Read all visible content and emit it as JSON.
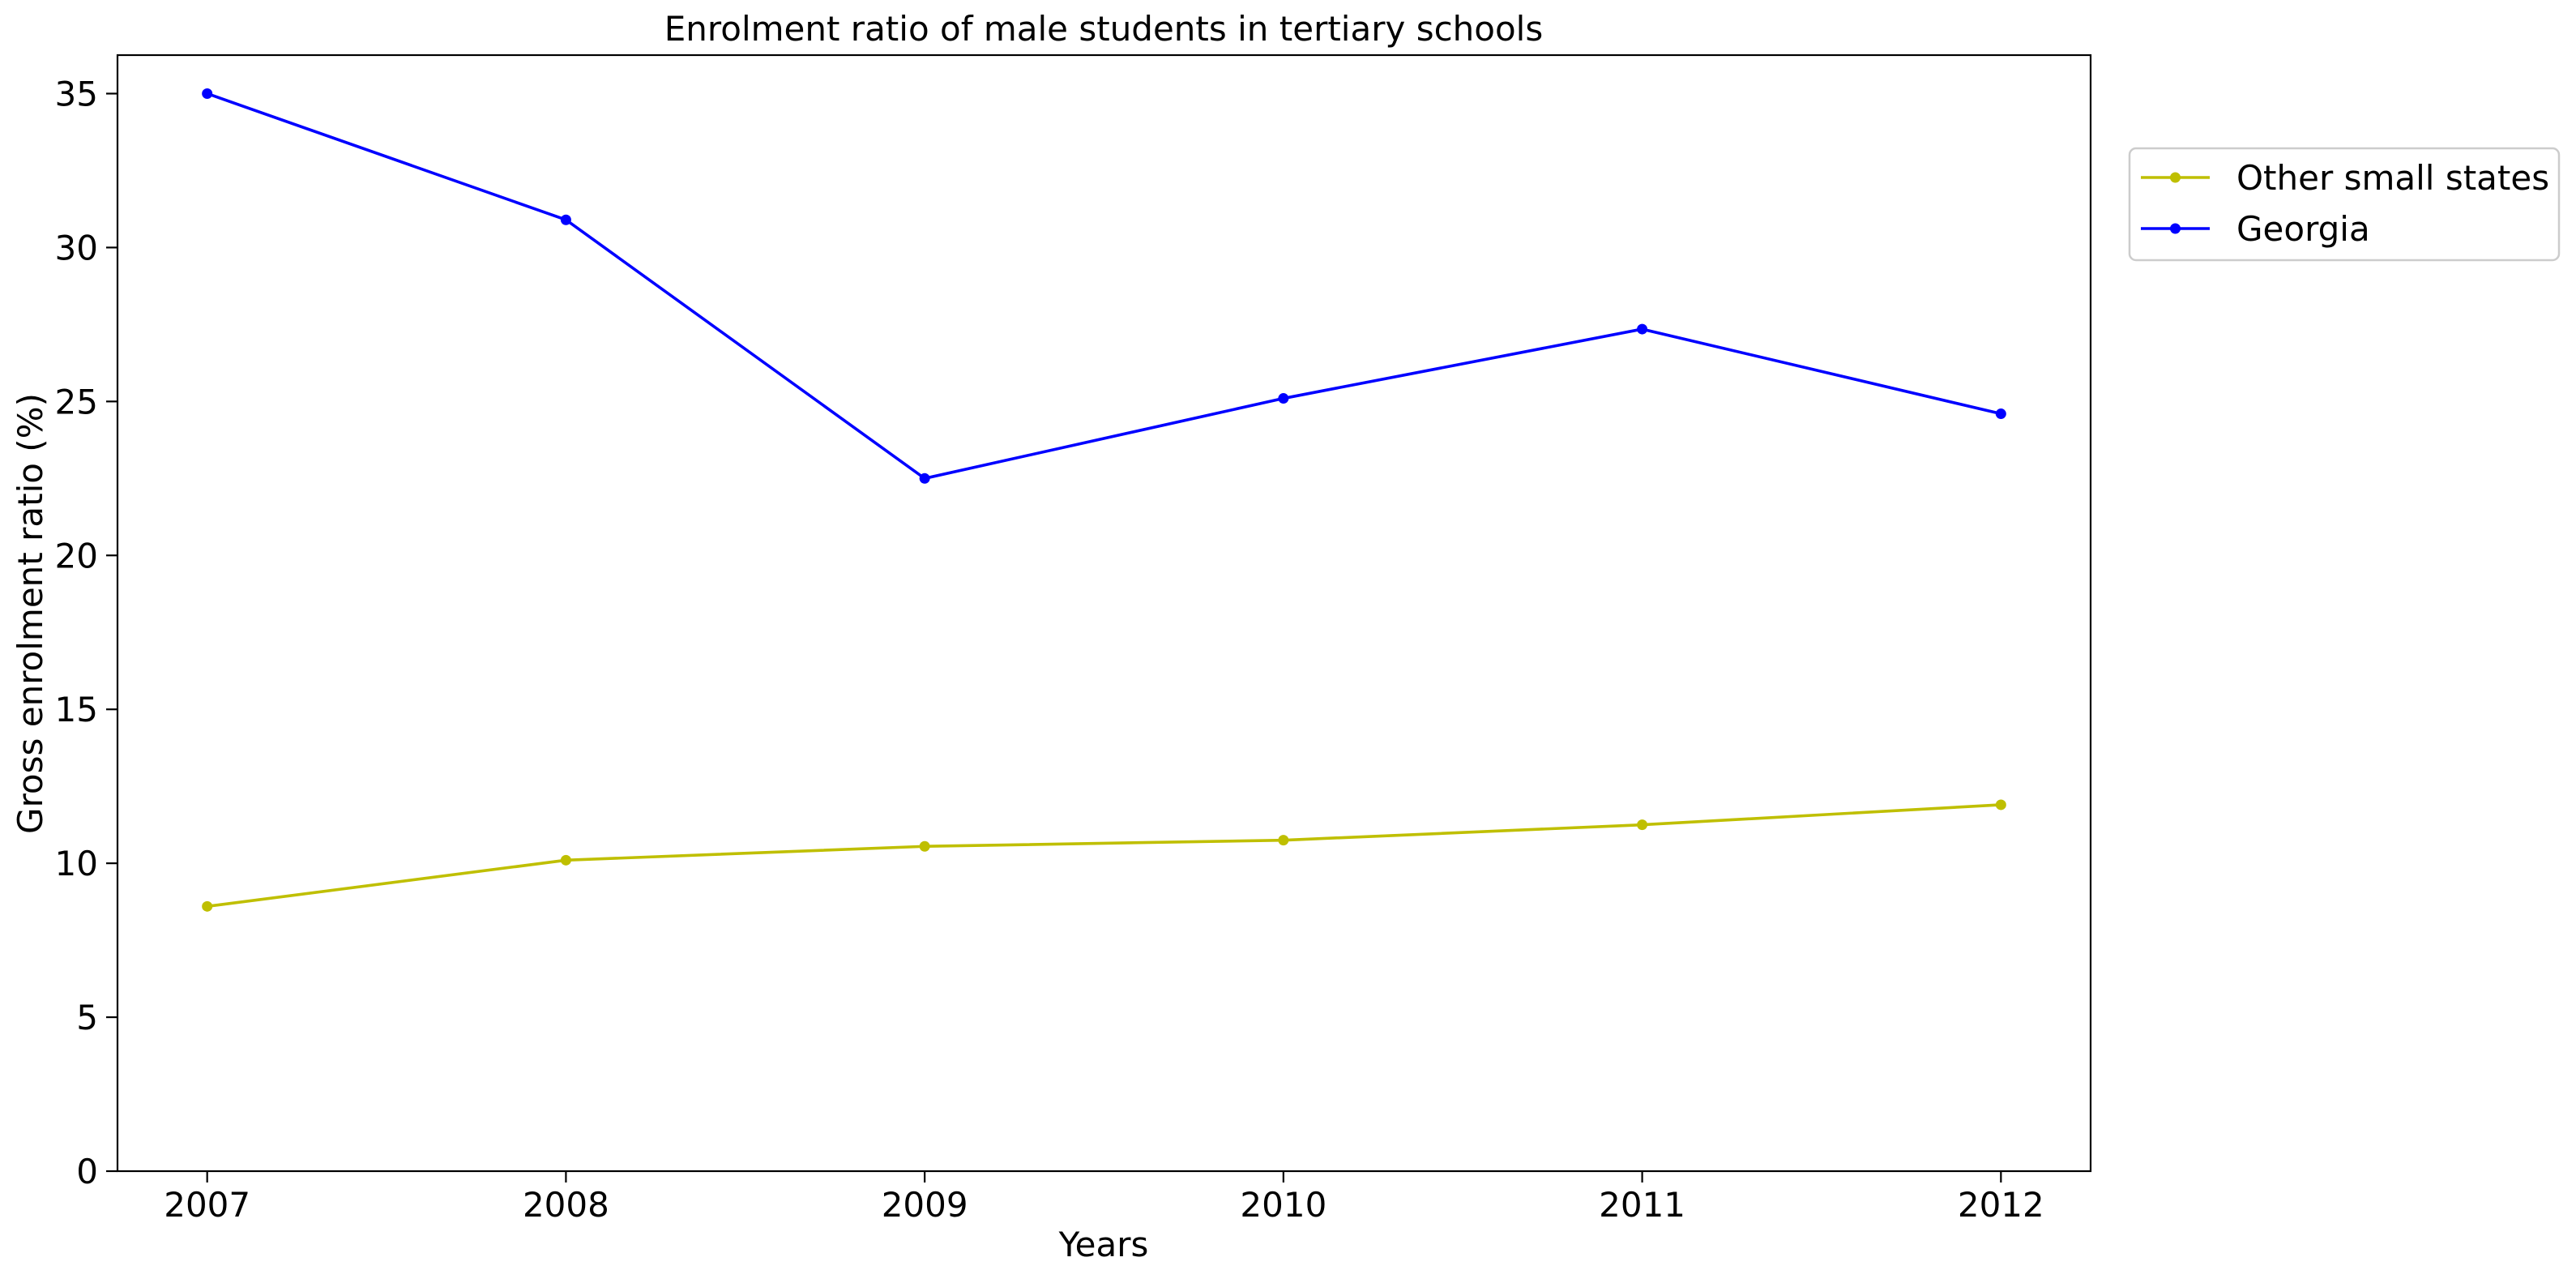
{
  "chart_data": {
    "type": "line",
    "title": "Enrolment ratio of male students in tertiary schools",
    "xlabel": "Years",
    "ylabel": "Gross enrolment ratio (%)",
    "x": [
      2007,
      2008,
      2009,
      2010,
      2011,
      2012
    ],
    "x_tick_labels": [
      "2007",
      "2008",
      "2009",
      "2010",
      "2011",
      "2012"
    ],
    "ylim": [
      0,
      36.25
    ],
    "yticks": [
      0,
      5,
      10,
      15,
      20,
      25,
      30,
      35
    ],
    "y_tick_labels": [
      "0",
      "5",
      "10",
      "15",
      "20",
      "25",
      "30",
      "35"
    ],
    "grid": false,
    "legend_position": "outside-top-right",
    "series": [
      {
        "name": "Other small states",
        "color": "#bfbf00",
        "marker": "circle",
        "values": [
          8.6,
          10.1,
          10.55,
          10.75,
          11.25,
          11.9
        ]
      },
      {
        "name": "Georgia",
        "color": "#0000ff",
        "marker": "circle",
        "values": [
          35.0,
          30.9,
          22.5,
          25.1,
          27.35,
          24.6
        ]
      }
    ]
  }
}
